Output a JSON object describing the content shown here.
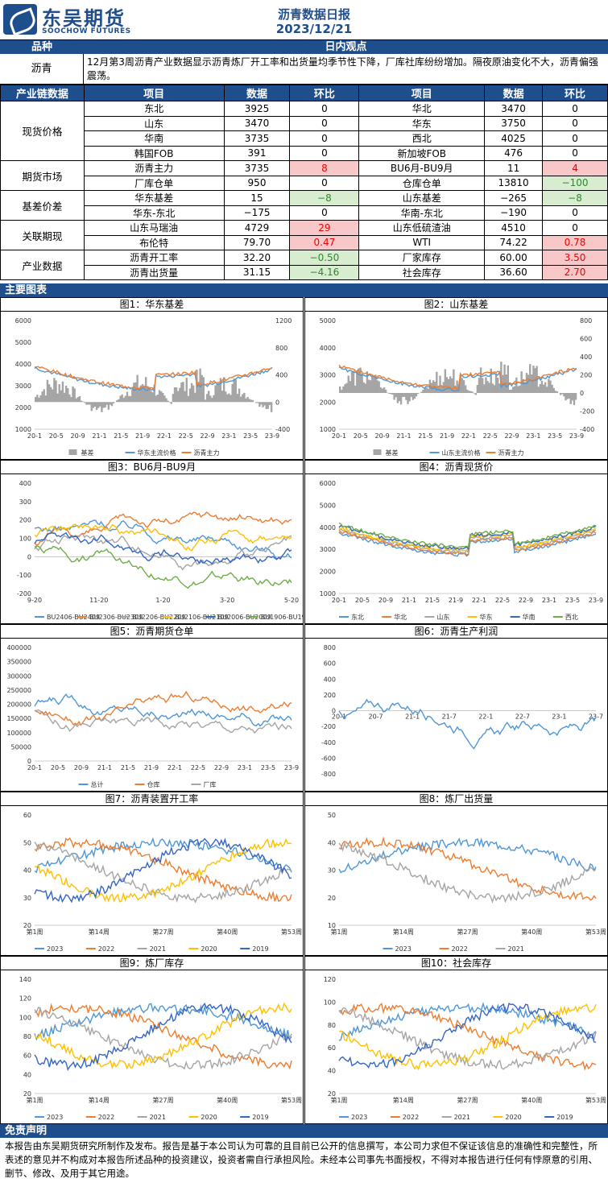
{
  "header": {
    "logo_cn": "东吴期货",
    "logo_en": "SOOCHOW FUTURES",
    "title": "沥青数据日报",
    "date": "2023/12/21"
  },
  "bars": {
    "variety_label": "品种",
    "view_label": "日内观点",
    "chain_label": "产业链数据",
    "charts_label": "主要图表",
    "disclaimer_label": "免责声明"
  },
  "view": {
    "variety": "沥青",
    "text": "12月第3周沥青产业数据显示沥青炼厂开工率和出货量均季节性下降，厂库社库纷纷增加。隔夜原油变化不大，沥青偏强震荡。"
  },
  "table": {
    "headers": [
      "项目",
      "数据",
      "环比",
      "项目",
      "数据",
      "环比"
    ],
    "groups": [
      {
        "category": "现货价格",
        "rows": [
          [
            "东北",
            "3925",
            "0",
            "华北",
            "3470",
            "0"
          ],
          [
            "山东",
            "3470",
            "0",
            "华东",
            "3750",
            "0"
          ],
          [
            "华南",
            "3735",
            "0",
            "西北",
            "4025",
            "0"
          ],
          [
            "韩国FOB",
            "391",
            "0",
            "新加坡FOB",
            "476",
            "0"
          ]
        ]
      },
      {
        "category": "期货市场",
        "rows": [
          [
            "沥青主力",
            "3735",
            "8",
            "BU6月-BU9月",
            "11",
            "4"
          ],
          [
            "厂库仓单",
            "950",
            "0",
            "仓库仓单",
            "13810",
            "-100"
          ]
        ]
      },
      {
        "category": "基差价差",
        "rows": [
          [
            "华东基差",
            "15",
            "-8",
            "山东基差",
            "-265",
            "-8"
          ],
          [
            "华东-东北",
            "-175",
            "0",
            "华南-东北",
            "-190",
            "0"
          ]
        ]
      },
      {
        "category": "关联期现",
        "rows": [
          [
            "山东马瑞油",
            "4729",
            "29",
            "山东低硫渣油",
            "4510",
            "0"
          ],
          [
            "布伦特",
            "79.70",
            "0.47",
            "WTI",
            "74.22",
            "0.78"
          ]
        ]
      },
      {
        "category": "产业数据",
        "rows": [
          [
            "沥青开工率",
            "32.20",
            "-0.50",
            "厂家库存",
            "60.00",
            "3.50"
          ],
          [
            "沥青出货量",
            "31.15",
            "-4.16",
            "社会库存",
            "36.60",
            "2.70"
          ]
        ]
      }
    ],
    "colors": {
      "up_bg": "#f8c8c8",
      "down_bg": "#d8ecd0"
    }
  },
  "charts": {
    "c1": {
      "title": "图1：华东基差",
      "yl": [
        "6000",
        "5000",
        "4000",
        "3000",
        "2000",
        "1000"
      ],
      "yr": [
        "1200",
        "800",
        "400",
        "0",
        "-400"
      ],
      "x": [
        "20-1",
        "20-5",
        "20-9",
        "21-1",
        "21-5",
        "21-9",
        "22-1",
        "22-5",
        "22-9",
        "23-1",
        "23-5",
        "23-9"
      ],
      "legend": [
        "基差",
        "华东主流价格",
        "沥青主力"
      ]
    },
    "c2": {
      "title": "图2：山东基差",
      "yl": [
        "5000",
        "4000",
        "3000",
        "2000",
        "1000"
      ],
      "yr": [
        "800",
        "600",
        "400",
        "200",
        "0",
        "-200",
        "-400"
      ],
      "x": [
        "20-1",
        "20-5",
        "20-9",
        "21-1",
        "21-5",
        "21-9",
        "22-1",
        "22-5",
        "22-9",
        "23-1",
        "23-5",
        "23-9"
      ],
      "legend": [
        "基差",
        "山东主流价格",
        "沥青主力"
      ]
    },
    "c3": {
      "title": "图3：BU6月-BU9月",
      "yl": [
        "400",
        "300",
        "200",
        "100",
        "0",
        "-100",
        "-200"
      ],
      "x": [
        "9-20",
        "11-20",
        "1-20",
        "3-20",
        "5-20"
      ],
      "legend": [
        "BU2406-BU2409",
        "BU2306-BU2309",
        "BU2206-BU2209",
        "BU2106-BU2109",
        "BU2006-BU2009",
        "BU1906-BU1909"
      ]
    },
    "c4": {
      "title": "图4：沥青现货价",
      "yl": [
        "6000",
        "5000",
        "4000",
        "3000",
        "2000",
        "1000"
      ],
      "x": [
        "20-1",
        "20-5",
        "20-9",
        "21-1",
        "21-5",
        "21-9",
        "22-1",
        "22-5",
        "22-9",
        "23-1",
        "23-5",
        "23-9"
      ],
      "legend": [
        "东北",
        "华北",
        "山东",
        "华东",
        "华南",
        "西北"
      ]
    },
    "c5": {
      "title": "图5：沥青期货仓单",
      "yl": [
        "400000",
        "350000",
        "300000",
        "250000",
        "200000",
        "150000",
        "100000",
        "50000",
        "0"
      ],
      "x": [
        "20-1",
        "20-5",
        "20-9",
        "21-1",
        "21-5",
        "21-9",
        "22-1",
        "22-5",
        "22-9",
        "23-1",
        "23-5",
        "23-9"
      ],
      "legend": [
        "总计",
        "仓库",
        "厂库"
      ]
    },
    "c6": {
      "title": "图6：沥青生产利润",
      "yl": [
        "800",
        "600",
        "400",
        "200",
        "0",
        "-200",
        "-400",
        "-600",
        "-800"
      ],
      "x": [
        "20-1",
        "20-7",
        "21-1",
        "21-7",
        "22-1",
        "22-7",
        "23-1",
        "23-7"
      ],
      "legend": []
    },
    "c7": {
      "title": "图7：沥青装置开工率",
      "yl": [
        "60",
        "50",
        "40",
        "30",
        "20"
      ],
      "x": [
        "第1周",
        "第14周",
        "第27周",
        "第40周",
        "第53周"
      ],
      "legend": [
        "2023",
        "2022",
        "2021",
        "2020",
        "2019"
      ]
    },
    "c8": {
      "title": "图8：炼厂出货量",
      "yl": [
        "50",
        "40",
        "30",
        "20",
        "10"
      ],
      "x": [
        "第1周",
        "第14周",
        "第27周",
        "第40周",
        "第53周"
      ],
      "legend": [
        "2023",
        "2022",
        "2021"
      ]
    },
    "c9": {
      "title": "图9：炼厂库存",
      "yl": [
        "140",
        "120",
        "100",
        "80",
        "60",
        "40",
        "20"
      ],
      "x": [
        "第1周",
        "第14周",
        "第27周",
        "第40周",
        "第53周"
      ],
      "legend": [
        "2023",
        "2022",
        "2021",
        "2020",
        "2019"
      ]
    },
    "c10": {
      "title": "图10：社会库存",
      "yl": [
        "120",
        "100",
        "80",
        "60",
        "40",
        "20"
      ],
      "x": [
        "第1周",
        "第14周",
        "第27周",
        "第40周",
        "第53周"
      ],
      "legend": [
        "2023",
        "2022",
        "2021",
        "2020",
        "2019"
      ]
    }
  },
  "palette": {
    "blue": "#4f97d6",
    "orange": "#ed7d31",
    "gray": "#a5a5a5",
    "yellow": "#ffc000",
    "navy": "#3566c4",
    "green": "#70ad47",
    "brand": "#1f4e8c"
  },
  "disclaimer": "本报告由东吴期货研究所制作及发布。报告是基于本公司认为可靠的且目前已公开的信息撰写，本公司力求但不保证该信息的准确性和完整性，所表述的意见并不构成对本报告所述品种的投资建议，投资者需自行承担风险。未经本公司事先书面授权，不得对本报告进行任何有悖原意的引用、删节、修改、及用于其它用途。"
}
